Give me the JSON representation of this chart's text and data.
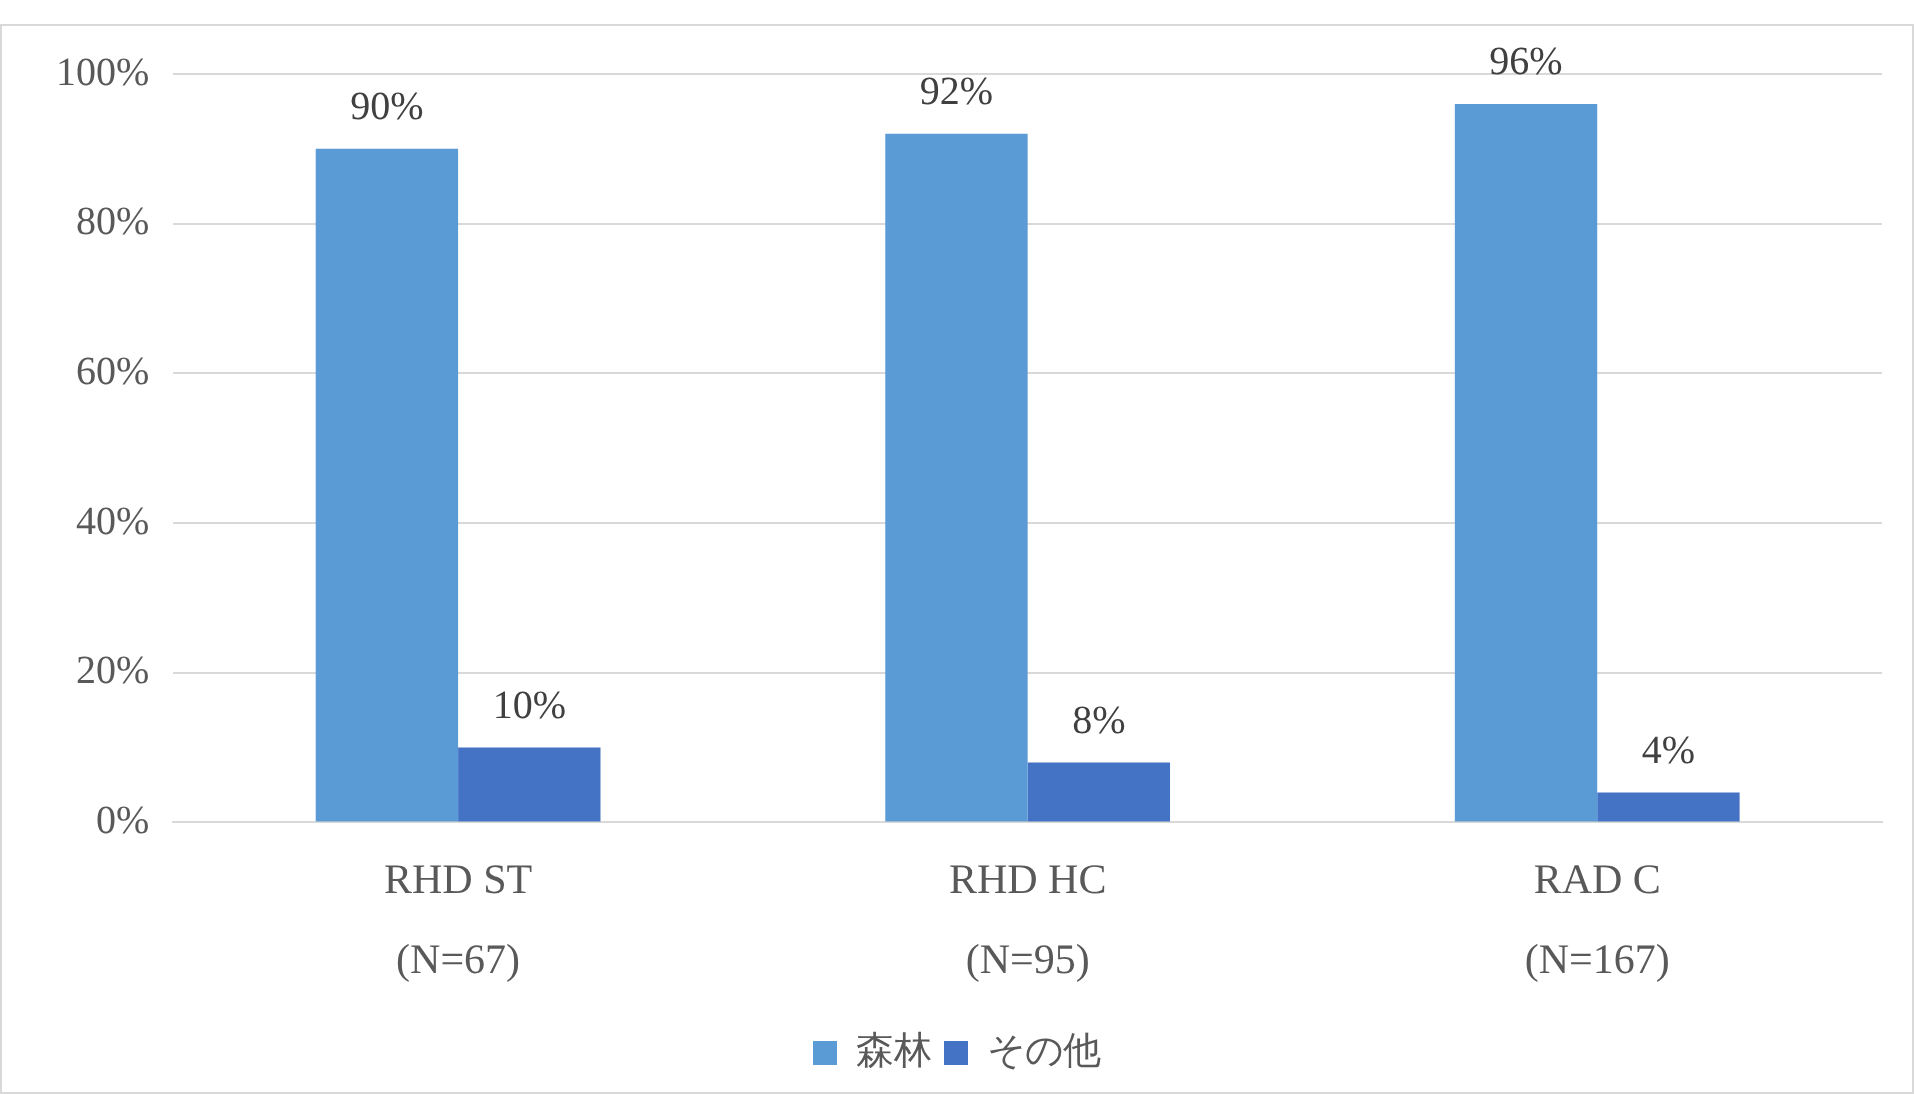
{
  "chart_data": {
    "type": "bar",
    "categories": [
      "RHD ST\n(N=67)",
      "RHD HC\n(N=95)",
      "RAD C\n(N=167)"
    ],
    "series": [
      {
        "name": "森林",
        "color": "#5b9bd5",
        "values": [
          90,
          92,
          96
        ],
        "value_labels": [
          "90%",
          "92%",
          "96%"
        ]
      },
      {
        "name": "その他",
        "color": "#4472c4",
        "values": [
          10,
          8,
          4
        ],
        "value_labels": [
          "10%",
          "8%",
          "4%"
        ]
      }
    ],
    "ylim": [
      0,
      100
    ],
    "yticks": [
      {
        "value": 0,
        "label": "0%"
      },
      {
        "value": 20,
        "label": "20%"
      },
      {
        "value": 40,
        "label": "40%"
      },
      {
        "value": 60,
        "label": "60%"
      },
      {
        "value": 80,
        "label": "80%"
      },
      {
        "value": 100,
        "label": "100%"
      }
    ],
    "grid": "y",
    "legend": "bottom"
  }
}
